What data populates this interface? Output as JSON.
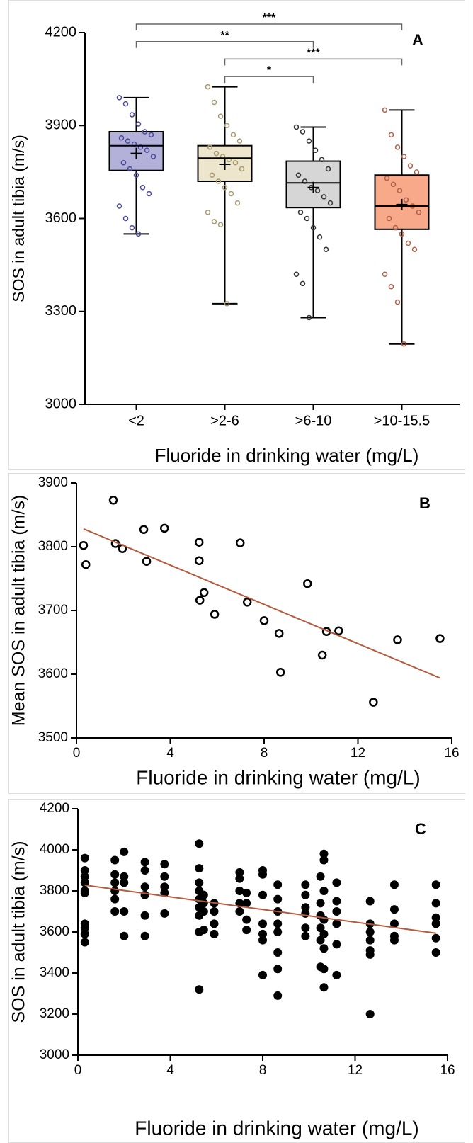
{
  "chart_data": [
    {
      "type": "box",
      "panel_label": "A",
      "y_label": "SOS in adult tibia (m/s)",
      "x_label": "Fluoride in drinking water (mg/L)",
      "categories": [
        "<2",
        ">2-6",
        ">6-10",
        ">10-15.5"
      ],
      "ylim": [
        3000,
        4200
      ],
      "yticks": [
        3000,
        3300,
        3600,
        3900,
        4200
      ],
      "boxes": [
        {
          "fill": "#b3b0d9",
          "point_color": "#4a4a9a",
          "min": 3550,
          "q1": 3755,
          "median": 3835,
          "q3": 3880,
          "max": 3990,
          "mean": 3810,
          "points": [
            3990,
            3970,
            3935,
            3905,
            3880,
            3870,
            3860,
            3850,
            3840,
            3830,
            3820,
            3800,
            3780,
            3760,
            3740,
            3700,
            3680,
            3640,
            3600,
            3570,
            3550
          ]
        },
        {
          "fill": "#ede6cc",
          "point_color": "#a89a70",
          "min": 3325,
          "q1": 3720,
          "median": 3795,
          "q3": 3835,
          "max": 4025,
          "mean": 3775,
          "points": [
            4025,
            3975,
            3930,
            3900,
            3870,
            3850,
            3830,
            3810,
            3800,
            3790,
            3780,
            3760,
            3740,
            3720,
            3700,
            3680,
            3650,
            3620,
            3590,
            3580,
            3325
          ]
        },
        {
          "fill": "#d6d6d6",
          "point_color": "#333333",
          "min": 3280,
          "q1": 3635,
          "median": 3715,
          "q3": 3785,
          "max": 3895,
          "mean": 3700,
          "points": [
            3895,
            3880,
            3850,
            3820,
            3790,
            3760,
            3740,
            3720,
            3700,
            3690,
            3670,
            3650,
            3620,
            3600,
            3570,
            3540,
            3500,
            3420,
            3390,
            3280
          ]
        },
        {
          "fill": "#f7a98a",
          "point_color": "#b0604a",
          "min": 3195,
          "q1": 3565,
          "median": 3640,
          "q3": 3740,
          "max": 3950,
          "mean": 3645,
          "points": [
            3950,
            3870,
            3830,
            3800,
            3770,
            3750,
            3730,
            3710,
            3690,
            3660,
            3640,
            3620,
            3600,
            3570,
            3550,
            3520,
            3500,
            3420,
            3380,
            3330,
            3195
          ]
        }
      ],
      "significance": [
        {
          "from": 0,
          "to": 3,
          "label": "***"
        },
        {
          "from": 0,
          "to": 2,
          "label": "**"
        },
        {
          "from": 1,
          "to": 3,
          "label": "***"
        },
        {
          "from": 1,
          "to": 2,
          "label": "*"
        }
      ]
    },
    {
      "type": "scatter",
      "panel_label": "B",
      "y_label": "Mean SOS in adult tibia (m/s)",
      "x_label": "Fluoride in drinking water (mg/L)",
      "xlim": [
        0,
        16
      ],
      "xticks": [
        0,
        4,
        8,
        12,
        16
      ],
      "ylim": [
        3500,
        3900
      ],
      "yticks": [
        3500,
        3600,
        3700,
        3800,
        3900
      ],
      "marker": "open",
      "x": [
        0.3,
        0.4,
        1.57,
        1.66,
        1.96,
        2.87,
        2.99,
        3.75,
        5.23,
        5.23,
        5.26,
        5.44,
        5.89,
        6.98,
        7.28,
        8.0,
        8.64,
        8.7,
        9.85,
        10.48,
        10.66,
        11.18,
        12.66,
        13.69,
        15.5
      ],
      "y": [
        3802,
        3772,
        3873,
        3805,
        3797,
        3827,
        3777,
        3829,
        3807,
        3778,
        3716,
        3728,
        3694,
        3806,
        3713,
        3684,
        3664,
        3603,
        3742,
        3630,
        3667,
        3668,
        3556,
        3654,
        3656
      ],
      "trend": {
        "color": "#b55a3c",
        "x": [
          0.3,
          15.5
        ],
        "y": [
          3828,
          3594
        ]
      }
    },
    {
      "type": "scatter",
      "panel_label": "C",
      "y_label": "SOS in adult tibia (m/s)",
      "x_label": "Fluoride in drinking water (mg/L)",
      "xlim": [
        0,
        16
      ],
      "xticks": [
        0,
        4,
        8,
        12,
        16
      ],
      "ylim": [
        3000,
        4200
      ],
      "yticks": [
        3000,
        3200,
        3400,
        3600,
        3800,
        4000,
        4200
      ],
      "marker": "filled",
      "x": [
        0.3,
        0.3,
        0.3,
        0.3,
        0.3,
        0.3,
        0.3,
        0.3,
        0.3,
        0.3,
        1.6,
        1.6,
        1.6,
        1.6,
        1.6,
        1.6,
        2.0,
        2.0,
        2.0,
        2.0,
        2.0,
        2.9,
        2.9,
        2.9,
        2.9,
        2.9,
        2.9,
        3.75,
        3.75,
        3.75,
        3.75,
        3.75,
        5.25,
        5.25,
        5.25,
        5.25,
        5.25,
        5.25,
        5.25,
        5.25,
        5.25,
        5.45,
        5.45,
        5.45,
        5.45,
        5.9,
        5.9,
        5.9,
        5.9,
        7.0,
        7.0,
        7.0,
        7.0,
        7.0,
        7.3,
        7.3,
        7.3,
        7.3,
        8.0,
        8.0,
        8.0,
        8.0,
        8.0,
        8.0,
        8.0,
        8.65,
        8.65,
        8.65,
        8.65,
        8.65,
        8.65,
        8.65,
        8.65,
        9.85,
        9.85,
        9.85,
        9.85,
        9.85,
        9.85,
        10.5,
        10.5,
        10.5,
        10.5,
        10.5,
        10.5,
        10.65,
        10.65,
        10.65,
        10.65,
        10.65,
        10.65,
        10.65,
        10.65,
        11.2,
        11.2,
        11.2,
        11.2,
        11.2,
        11.2,
        12.65,
        12.65,
        12.65,
        12.65,
        12.65,
        12.65,
        12.65,
        13.7,
        13.7,
        13.7,
        13.7,
        13.7,
        15.5,
        15.5,
        15.5,
        15.5,
        15.5,
        15.5
      ],
      "y": [
        3960,
        3900,
        3870,
        3840,
        3800,
        3790,
        3640,
        3590,
        3550,
        3620,
        3950,
        3880,
        3840,
        3800,
        3760,
        3700,
        3990,
        3870,
        3840,
        3700,
        3580,
        3940,
        3900,
        3820,
        3780,
        3680,
        3580,
        3930,
        3870,
        3820,
        3790,
        3690,
        4030,
        3910,
        3840,
        3800,
        3760,
        3720,
        3680,
        3600,
        3320,
        3780,
        3740,
        3700,
        3610,
        3740,
        3700,
        3640,
        3590,
        3890,
        3860,
        3800,
        3740,
        3700,
        3790,
        3740,
        3660,
        3610,
        3900,
        3880,
        3780,
        3640,
        3590,
        3560,
        3390,
        3830,
        3760,
        3700,
        3640,
        3600,
        3500,
        3420,
        3290,
        3830,
        3780,
        3720,
        3690,
        3620,
        3580,
        3870,
        3740,
        3680,
        3620,
        3560,
        3430,
        3980,
        3950,
        3800,
        3660,
        3590,
        3520,
        3420,
        3330,
        3840,
        3750,
        3700,
        3640,
        3540,
        3390,
        3750,
        3640,
        3600,
        3560,
        3510,
        3490,
        3200,
        3830,
        3710,
        3640,
        3580,
        3560,
        3830,
        3740,
        3670,
        3640,
        3570,
        3500
      ],
      "trend": {
        "color": "#b55a3c",
        "x": [
          0.3,
          15.5
        ],
        "y": [
          3828,
          3594
        ]
      }
    }
  ]
}
